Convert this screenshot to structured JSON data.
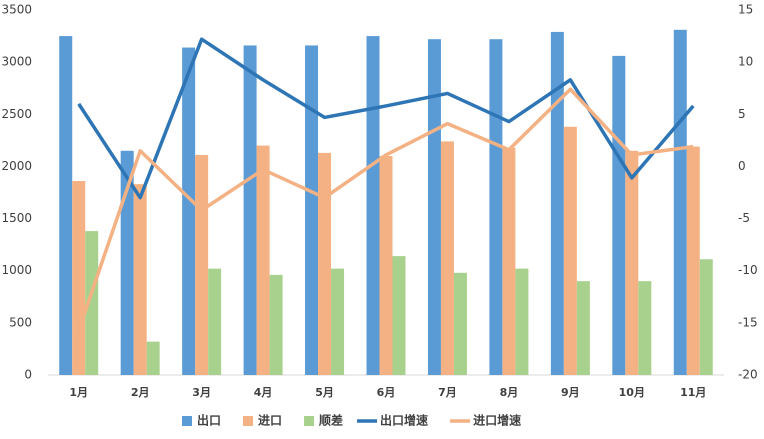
{
  "chart_data": {
    "type": "bar-line",
    "categories": [
      "1月",
      "2月",
      "3月",
      "4月",
      "5月",
      "6月",
      "7月",
      "8月",
      "9月",
      "10月",
      "11月"
    ],
    "series": [
      {
        "name": "出口",
        "type": "bar",
        "color": "#5b9bd5",
        "values": [
          3250,
          2150,
          3140,
          3160,
          3160,
          3250,
          3220,
          3220,
          3290,
          3060,
          3310
        ]
      },
      {
        "name": "进口",
        "type": "bar",
        "color": "#f4b183",
        "values": [
          1860,
          1830,
          2110,
          2200,
          2130,
          2100,
          2240,
          2180,
          2380,
          2150,
          2190
        ]
      },
      {
        "name": "顺差",
        "type": "bar",
        "color": "#a9d18e",
        "values": [
          1380,
          320,
          1020,
          960,
          1020,
          1140,
          980,
          1020,
          900,
          900,
          1110
        ]
      },
      {
        "name": "出口增速",
        "type": "line",
        "axis": "y2",
        "color": "#2e75b6",
        "values": [
          6.0,
          -3.0,
          12.2,
          8.3,
          4.7,
          5.8,
          7.0,
          4.3,
          8.3,
          -1.1,
          5.8
        ]
      },
      {
        "name": "进口增速",
        "type": "line",
        "axis": "y2",
        "color": "#f4b183",
        "values": [
          -15.7,
          1.5,
          -4.2,
          -0.3,
          -3.0,
          1.1,
          4.1,
          1.6,
          7.4,
          1.1,
          1.9
        ]
      }
    ],
    "ylim": [
      0,
      3500
    ],
    "yticks": [
      0,
      500,
      1000,
      1500,
      2000,
      2500,
      3000,
      3500
    ],
    "y2lim": [
      -20,
      15
    ],
    "y2ticks": [
      -20,
      -15,
      -10,
      -5,
      0,
      5,
      10,
      15
    ],
    "legend": "bottom"
  }
}
